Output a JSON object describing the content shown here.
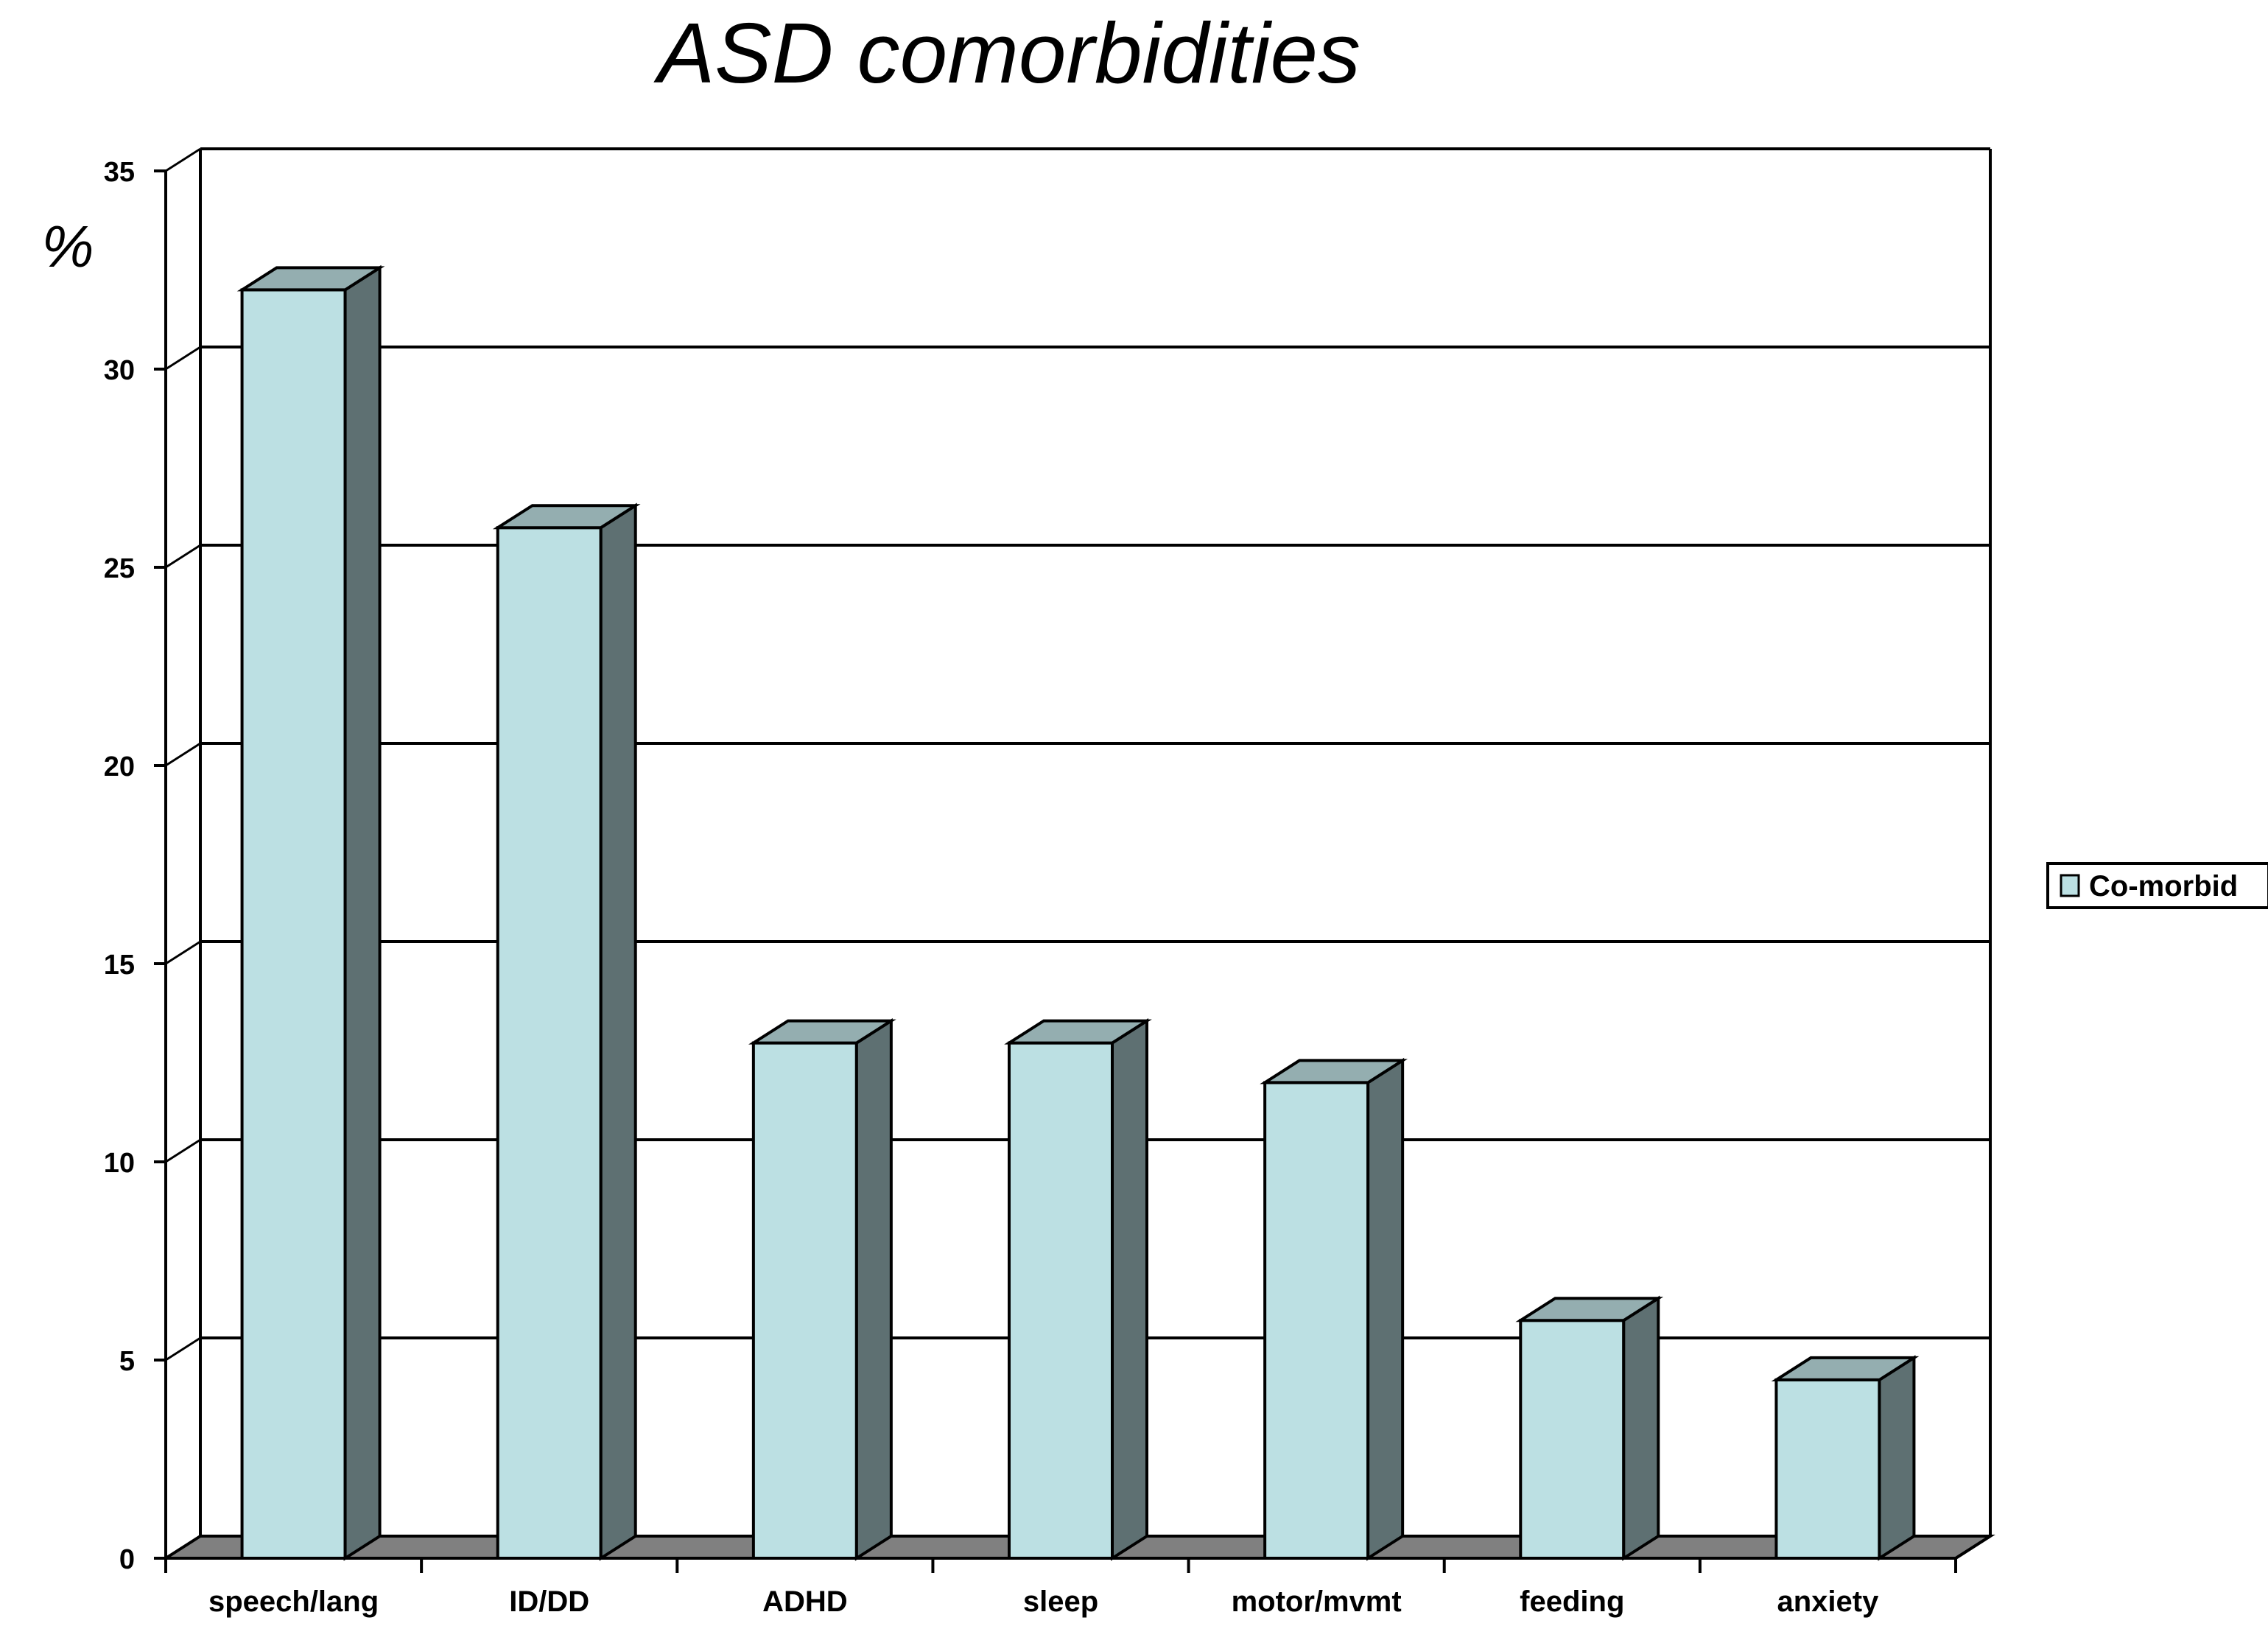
{
  "chart_data": {
    "type": "bar",
    "title": "ASD comorbidities",
    "ylabel": "%",
    "xlabel": "",
    "categories": [
      "speech/lang",
      "ID/DD",
      "ADHD",
      "sleep",
      "motor/mvmt",
      "feeding",
      "anxiety"
    ],
    "series": [
      {
        "name": "Co-morbid",
        "values": [
          32,
          26,
          13,
          13,
          12,
          6,
          4.5
        ]
      }
    ],
    "ylim": [
      0,
      35
    ],
    "yticks": [
      0,
      5,
      10,
      15,
      20,
      25,
      30,
      35
    ],
    "grid": true,
    "three_d": true,
    "legend_position": "right"
  },
  "colors": {
    "bar_front": "#bce0e3",
    "bar_top": "#94aeb0",
    "bar_side": "#5e7072",
    "floor": "#808080",
    "axis": "#000000"
  }
}
